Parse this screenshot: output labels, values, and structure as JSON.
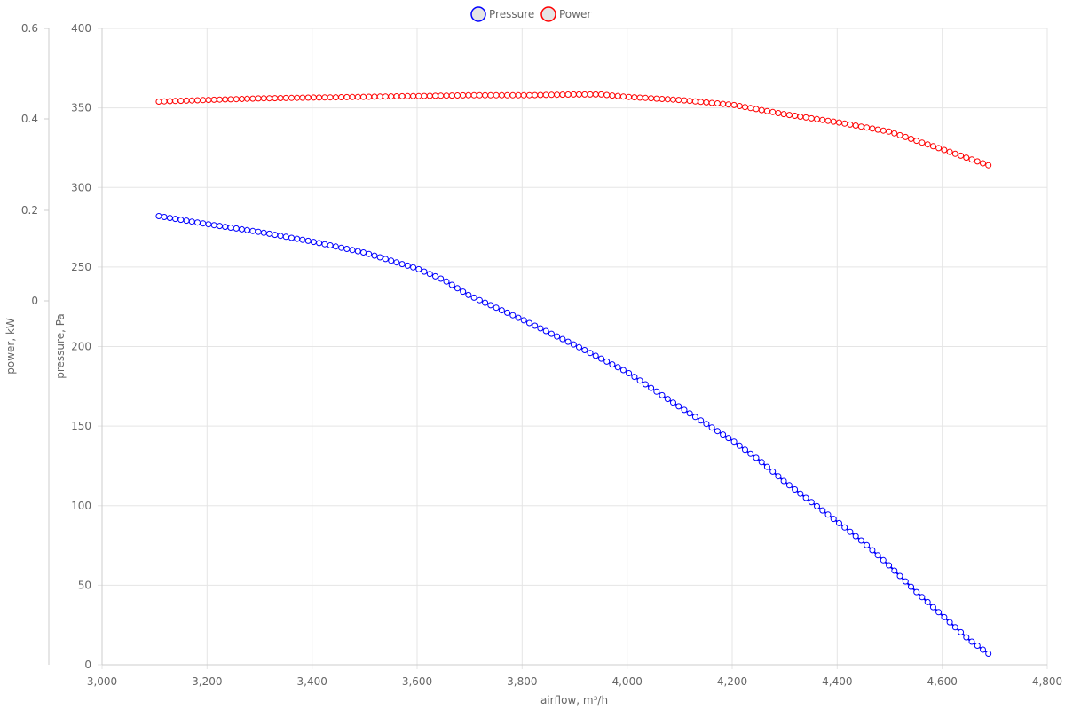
{
  "chart_data": {
    "type": "line",
    "x_axis": {
      "label": "airflow, m³/h",
      "min": 3000,
      "max": 4800,
      "ticks": [
        "3,000",
        "3,200",
        "3,400",
        "3,600",
        "3,800",
        "4,000",
        "4,200",
        "4,400",
        "4,600",
        "4,800"
      ],
      "tick_values": [
        3000,
        3200,
        3400,
        3600,
        3800,
        4000,
        4200,
        4400,
        4600,
        4800
      ]
    },
    "y_axis_pressure": {
      "label": "pressure, Pa",
      "min": 0,
      "max": 400,
      "ticks": [
        "0",
        "50",
        "100",
        "150",
        "200",
        "250",
        "300",
        "350",
        "400"
      ],
      "tick_values": [
        0,
        50,
        100,
        150,
        200,
        250,
        300,
        350,
        400
      ]
    },
    "y_axis_power": {
      "label": "power, kW",
      "ticks": [
        "0",
        "0.2",
        "0.4",
        "0.6"
      ],
      "tick_values": [
        0,
        0.2,
        0.4,
        0.6
      ]
    },
    "legend": {
      "position": "top-center"
    },
    "grid": true,
    "series": [
      {
        "name": "Pressure",
        "color": "#0000ff",
        "axis": "pressure",
        "points": [
          [
            3108,
            282
          ],
          [
            3200,
            277
          ],
          [
            3300,
            272
          ],
          [
            3400,
            266
          ],
          [
            3500,
            259
          ],
          [
            3600,
            249
          ],
          [
            3650,
            242
          ],
          [
            3700,
            232
          ],
          [
            3800,
            217
          ],
          [
            3900,
            201
          ],
          [
            4000,
            184
          ],
          [
            4100,
            162
          ],
          [
            4200,
            141
          ],
          [
            4250,
            129
          ],
          [
            4300,
            115
          ],
          [
            4400,
            90
          ],
          [
            4450,
            77
          ],
          [
            4500,
            62
          ],
          [
            4550,
            46
          ],
          [
            4600,
            31
          ],
          [
            4650,
            16
          ],
          [
            4688,
            7
          ]
        ]
      },
      {
        "name": "Power",
        "color": "#ff0000",
        "axis": "pressure",
        "points": [
          [
            3108,
            354
          ],
          [
            3200,
            355
          ],
          [
            3300,
            356
          ],
          [
            3400,
            356.5
          ],
          [
            3500,
            357
          ],
          [
            3600,
            357.5
          ],
          [
            3700,
            358
          ],
          [
            3800,
            358
          ],
          [
            3900,
            358.5
          ],
          [
            3950,
            358.5
          ],
          [
            4000,
            357
          ],
          [
            4100,
            355
          ],
          [
            4200,
            352
          ],
          [
            4250,
            349
          ],
          [
            4300,
            346
          ],
          [
            4400,
            341
          ],
          [
            4500,
            335
          ],
          [
            4600,
            324
          ],
          [
            4688,
            314
          ]
        ]
      }
    ]
  }
}
